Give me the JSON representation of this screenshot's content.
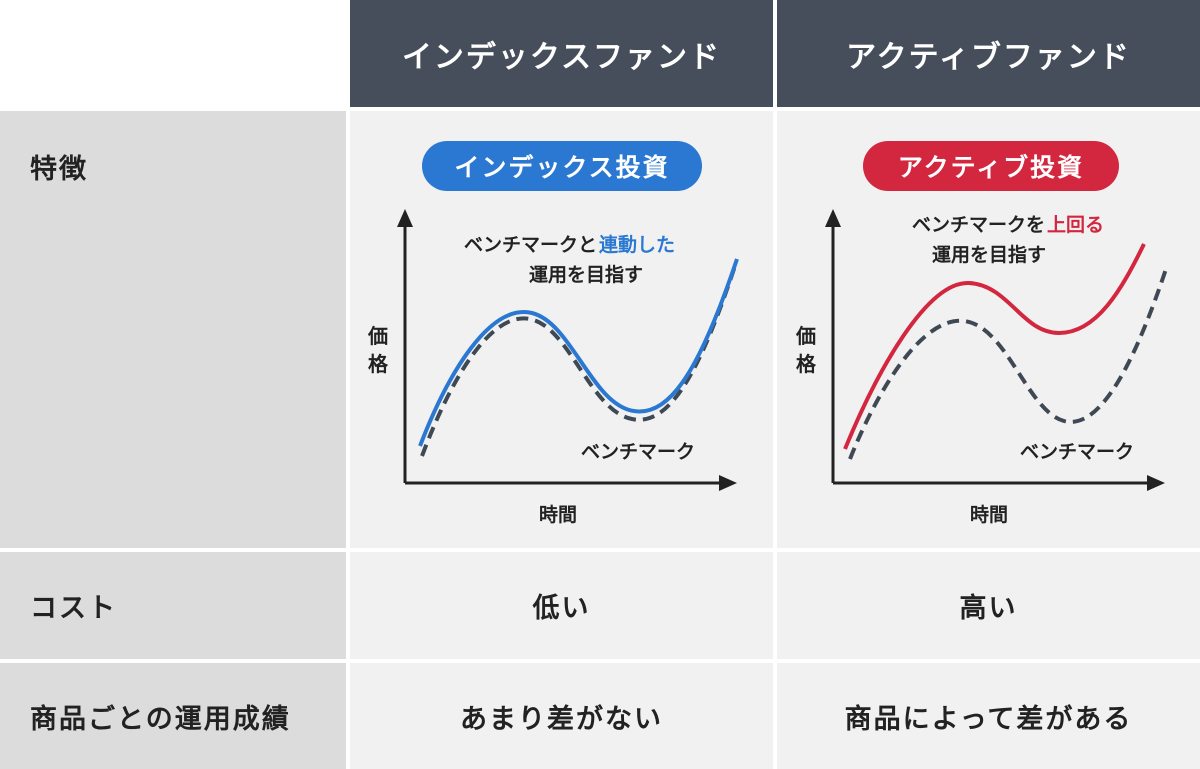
{
  "header": {
    "index_fund": "インデックスファンド",
    "active_fund": "アクティブファンド"
  },
  "rows": {
    "feature": "特徴",
    "cost": "コスト",
    "performance": "商品ごとの運用成績"
  },
  "index": {
    "pill": "インデックス投資",
    "caption_prefix": "ベンチマークと",
    "caption_highlight": "連動した",
    "caption_line2": "運用を目指す",
    "y_axis_char1": "価",
    "y_axis_char2": "格",
    "x_axis": "時間",
    "benchmark_label": "ベンチマーク",
    "cost": "低い",
    "performance": "あまり差がない"
  },
  "active": {
    "pill": "アクティブ投資",
    "caption_prefix": "ベンチマークを",
    "caption_highlight": "上回る",
    "caption_line2": "運用を目指す",
    "y_axis_char1": "価",
    "y_axis_char2": "格",
    "x_axis": "時間",
    "benchmark_label": "ベンチマーク",
    "cost": "高い",
    "performance": "商品によって差がある"
  },
  "colors": {
    "header_bg": "#454e5a",
    "label_bg": "#dcdcdc",
    "cell_bg": "#f1f1f1",
    "index_accent": "#2a78d1",
    "active_accent": "#d3263f",
    "benchmark_line": "#3f4954"
  }
}
